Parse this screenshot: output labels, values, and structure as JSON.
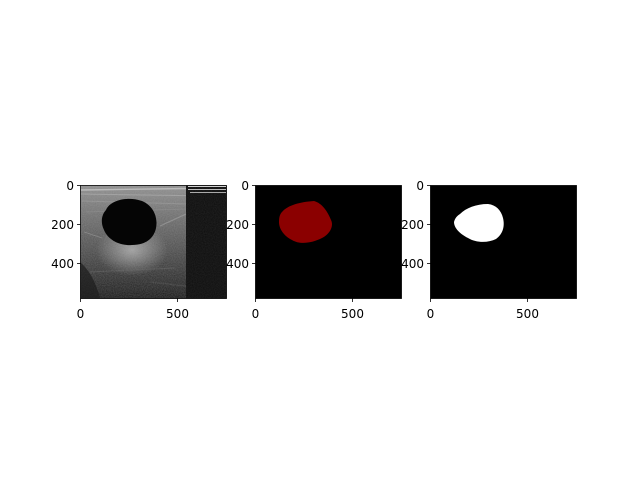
{
  "figure": {
    "panels": [
      {
        "name": "ultrasound-image",
        "x_ticks": [
          "0",
          "500"
        ],
        "y_ticks": [
          "0",
          "200",
          "400"
        ]
      },
      {
        "name": "overlay-mask",
        "x_ticks": [
          "0",
          "500"
        ],
        "y_ticks": [
          "0",
          "200",
          "400"
        ]
      },
      {
        "name": "binary-mask",
        "x_ticks": [
          "0",
          "500"
        ],
        "y_ticks": [
          "0",
          "200",
          "400"
        ]
      }
    ],
    "colors": {
      "background": "#ffffff",
      "mask_red": "#8b0000",
      "mask_white": "#ffffff",
      "panel_black": "#000000"
    }
  }
}
